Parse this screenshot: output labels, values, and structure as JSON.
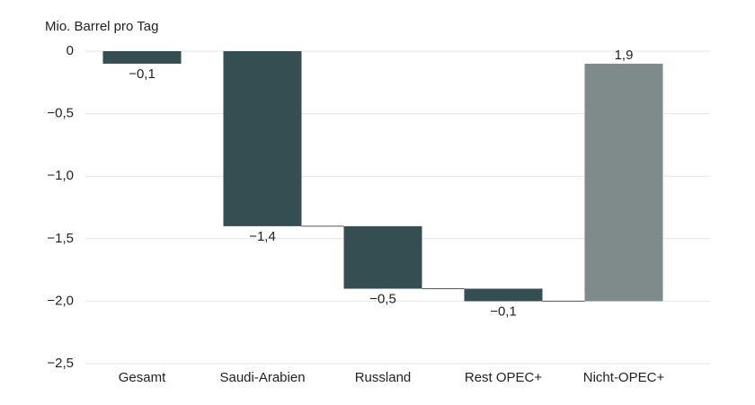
{
  "chart_data": {
    "type": "waterfall",
    "y_axis_label": "Mio. Barrel pro Tag",
    "categories": [
      "Gesamt",
      "Saudi-Arabien",
      "Russland",
      "Rest OPEC+",
      "Nicht-OPEC+"
    ],
    "values": [
      -0.1,
      -1.4,
      -0.5,
      -0.1,
      1.9
    ],
    "value_labels": [
      "−0,1",
      "−1,4",
      "−0,5",
      "−0,1",
      "1,9"
    ],
    "colors": [
      "#344e52",
      "#344e52",
      "#344e52",
      "#344e52",
      "#7f8b8a"
    ],
    "ylim": [
      -2.5,
      0
    ],
    "yticks": [
      {
        "value": 0,
        "label": "0"
      },
      {
        "value": -0.5,
        "label": "−0,5"
      },
      {
        "value": -1.0,
        "label": "−1,0"
      },
      {
        "value": -1.5,
        "label": "−1,5"
      },
      {
        "value": -2.0,
        "label": "−2,0"
      },
      {
        "value": -2.5,
        "label": "−2,5"
      }
    ],
    "grid": true
  }
}
